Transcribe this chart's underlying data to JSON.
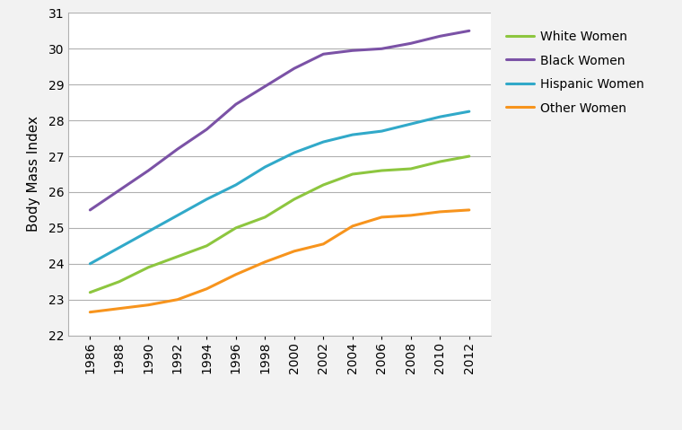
{
  "years": [
    1986,
    1988,
    1990,
    1992,
    1994,
    1996,
    1998,
    2000,
    2002,
    2004,
    2006,
    2008,
    2010,
    2012
  ],
  "series": {
    "White Women": {
      "values": [
        23.2,
        23.5,
        23.9,
        24.2,
        24.5,
        25.0,
        25.3,
        25.8,
        26.2,
        26.5,
        26.6,
        26.65,
        26.85,
        27.0
      ],
      "color": "#8DC63F"
    },
    "Black Women": {
      "values": [
        25.5,
        26.05,
        26.6,
        27.2,
        27.75,
        28.45,
        28.95,
        29.45,
        29.85,
        29.95,
        30.0,
        30.15,
        30.35,
        30.5
      ],
      "color": "#7B52A6"
    },
    "Hispanic Women": {
      "values": [
        24.0,
        24.45,
        24.9,
        25.35,
        25.8,
        26.2,
        26.7,
        27.1,
        27.4,
        27.6,
        27.7,
        27.9,
        28.1,
        28.25
      ],
      "color": "#31A9C9"
    },
    "Other Women": {
      "values": [
        22.65,
        22.75,
        22.85,
        23.0,
        23.3,
        23.7,
        24.05,
        24.35,
        24.55,
        25.05,
        25.3,
        25.35,
        25.45,
        25.5
      ],
      "color": "#F7941D"
    }
  },
  "ylabel": "Body Mass Index",
  "ylim": [
    22,
    31
  ],
  "yticks": [
    22,
    23,
    24,
    25,
    26,
    27,
    28,
    29,
    30,
    31
  ],
  "background_color": "#f2f2f2",
  "plot_bg_color": "#ffffff",
  "grid_color": "#b0b0b0",
  "legend_order": [
    "White Women",
    "Black Women",
    "Hispanic Women",
    "Other Women"
  ],
  "line_width": 2.2,
  "tick_fontsize": 10,
  "ylabel_fontsize": 11
}
